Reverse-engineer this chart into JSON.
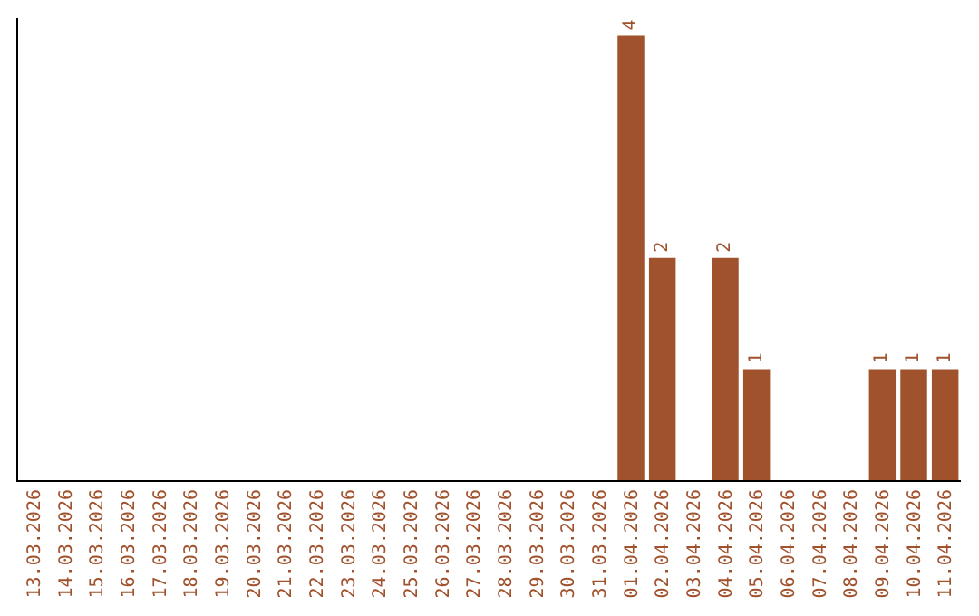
{
  "chart_data": {
    "type": "bar",
    "categories": [
      "13.03.2026",
      "14.03.2026",
      "15.03.2026",
      "16.03.2026",
      "17.03.2026",
      "18.03.2026",
      "19.03.2026",
      "20.03.2026",
      "21.03.2026",
      "22.03.2026",
      "23.03.2026",
      "24.03.2026",
      "25.03.2026",
      "26.03.2026",
      "27.03.2026",
      "28.03.2026",
      "29.03.2026",
      "30.03.2026",
      "31.03.2026",
      "01.04.2026",
      "02.04.2026",
      "03.04.2026",
      "04.04.2026",
      "05.04.2026",
      "06.04.2026",
      "07.04.2026",
      "08.04.2026",
      "09.04.2026",
      "10.04.2026",
      "11.04.2026"
    ],
    "values": [
      null,
      null,
      null,
      null,
      null,
      null,
      null,
      null,
      null,
      null,
      null,
      null,
      null,
      null,
      null,
      null,
      null,
      null,
      null,
      4,
      2,
      null,
      2,
      1,
      null,
      null,
      null,
      1,
      1,
      1
    ],
    "color": "#a0522d",
    "data_labels": true
  }
}
